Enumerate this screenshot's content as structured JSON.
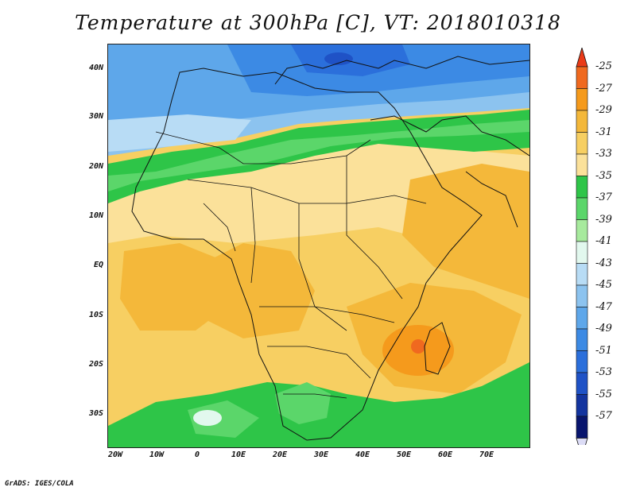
{
  "title": "Temperature at 300hPa [C], VT: 2018010318",
  "credit": "GrADS: IGES/COLA",
  "lat_ticks": [
    "40N",
    "30N",
    "20N",
    "10N",
    "EQ",
    "10S",
    "20S",
    "30S"
  ],
  "lon_ticks": [
    "20W",
    "10W",
    "0",
    "10E",
    "20E",
    "30E",
    "40E",
    "50E",
    "60E",
    "70E"
  ],
  "colorbar": {
    "labels": [
      "-25",
      "-27",
      "-29",
      "-31",
      "-33",
      "-35",
      "-37",
      "-39",
      "-41",
      "-43",
      "-45",
      "-47",
      "-49",
      "-51",
      "-53",
      "-55",
      "-57"
    ],
    "colors": [
      "#f0691f",
      "#f59a1c",
      "#f4b83a",
      "#f7cf62",
      "#fbe19a",
      "#2ec548",
      "#5bd66a",
      "#a7ea9d",
      "#e2f8ee",
      "#b8dcf5",
      "#8cc3ef",
      "#5ea7ea",
      "#3c8ae4",
      "#2b6fdb",
      "#1f52c6",
      "#13349f",
      "#08156e"
    ],
    "over_color": "#ea3a17",
    "under_color": "#dcdcf6"
  },
  "colors": {
    "cold_blue": "#3a8be5",
    "green": "#2ec548",
    "yellow": "#fbe19a",
    "orange": "#f4b83a",
    "hot": "#f0691f"
  }
}
